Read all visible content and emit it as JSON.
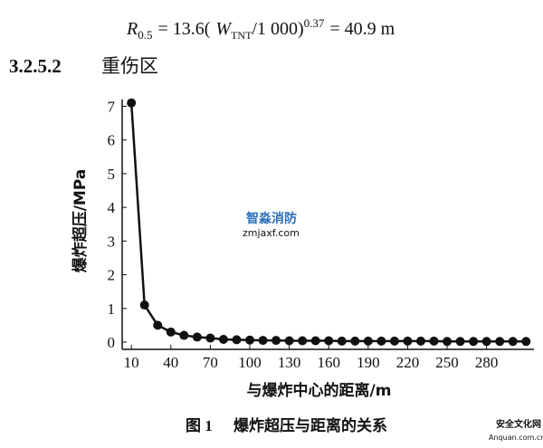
{
  "formula": {
    "r": "R",
    "r_sub": "0.5",
    "mid": "= 13.6(",
    "w": "W",
    "w_sub": "TNT",
    "rest": "/1 000)",
    "exp": "0.37",
    "end": "= 40.9 m"
  },
  "section": {
    "number": "3.2.5.2",
    "title": "重伤区"
  },
  "watermarks": {
    "brand": "智淼消防",
    "site": "zmjaxf.com",
    "corner": "安全文化网",
    "corner_site": "Anquan.com.cn"
  },
  "caption": {
    "label": "图 1",
    "text": "爆炸超压与距离的关系"
  },
  "chart_data": {
    "type": "line",
    "x_label": "与爆炸中心的距离/m",
    "y_label": "爆炸超压/MPa",
    "x": [
      10,
      20,
      30,
      40,
      50,
      60,
      70,
      80,
      90,
      100,
      110,
      120,
      130,
      140,
      150,
      160,
      170,
      180,
      190,
      200,
      210,
      220,
      230,
      240,
      250,
      260,
      270,
      280,
      290,
      300,
      310
    ],
    "series": [
      {
        "name": "爆炸超压",
        "color": "#111111",
        "values": [
          7.1,
          1.1,
          0.5,
          0.3,
          0.2,
          0.15,
          0.12,
          0.08,
          0.07,
          0.06,
          0.05,
          0.05,
          0.04,
          0.04,
          0.04,
          0.04,
          0.03,
          0.03,
          0.03,
          0.03,
          0.03,
          0.03,
          0.03,
          0.03,
          0.02,
          0.02,
          0.02,
          0.02,
          0.02,
          0.02,
          0.02
        ]
      }
    ],
    "xlim": [
      3,
      316
    ],
    "ylim": [
      0,
      7.2
    ],
    "xticks": [
      10,
      40,
      70,
      100,
      130,
      160,
      190,
      220,
      250,
      280
    ],
    "yticks": [
      0,
      1,
      2,
      3,
      4,
      5,
      6,
      7
    ]
  }
}
